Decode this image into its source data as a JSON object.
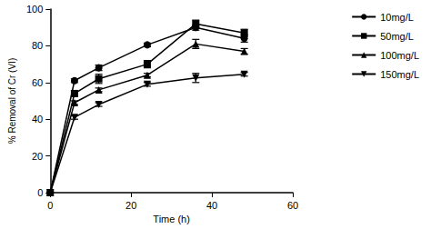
{
  "chart_data": {
    "type": "line",
    "x_label": "Time (h)",
    "y_label": "% Removal of Cr (VI)",
    "xlim": [
      0,
      60
    ],
    "xticks": [
      0,
      20,
      40,
      60
    ],
    "ylim": [
      0,
      100
    ],
    "yticks": [
      0,
      20,
      40,
      60,
      80,
      100
    ],
    "grid": false,
    "legend": "right",
    "x": [
      0,
      6,
      12,
      24,
      36,
      48
    ],
    "series": [
      {
        "name": "10mg/L",
        "color": "#000000",
        "marker": "circle",
        "values": [
          0,
          61,
          68,
          80.5,
          90,
          84
        ],
        "errors": [
          0,
          1,
          1.5,
          1,
          1.5,
          2
        ]
      },
      {
        "name": "50mg/L",
        "color": "#000000",
        "marker": "square",
        "values": [
          0,
          54,
          62,
          70,
          92,
          87
        ],
        "errors": [
          0,
          1.5,
          2.5,
          2,
          2,
          2
        ]
      },
      {
        "name": "100mg/L",
        "color": "#000000",
        "marker": "triangle",
        "values": [
          0,
          49,
          56,
          64,
          81,
          77
        ],
        "errors": [
          0,
          1,
          1,
          1,
          2.5,
          1.5
        ]
      },
      {
        "name": "150mg/L",
        "color": "#000000",
        "marker": "triangle-down",
        "values": [
          0,
          41,
          48,
          59,
          62.5,
          64.5
        ],
        "errors": [
          0,
          1,
          1,
          1,
          2.5,
          1
        ]
      }
    ]
  }
}
